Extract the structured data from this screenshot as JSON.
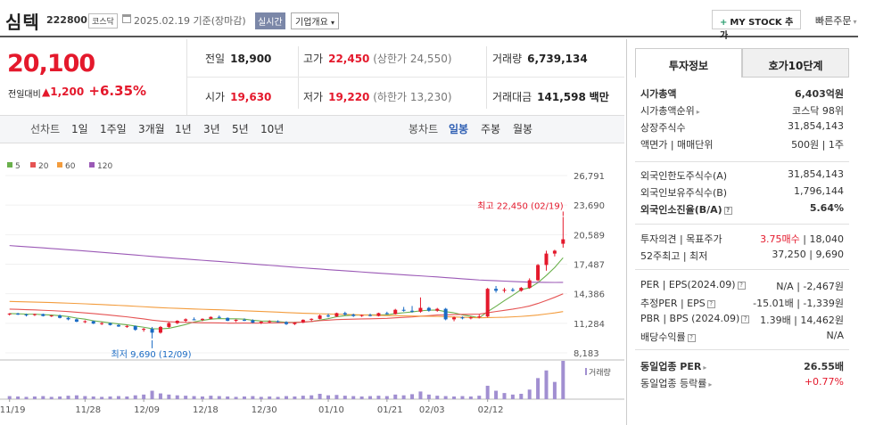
{
  "header": {
    "name": "심텍",
    "code": "222800",
    "market": "코스닥",
    "date": "2025.02.19",
    "basis": "기준(장마감)",
    "realtime": "실시간",
    "company_info": "기업개요",
    "mystock": "MY STOCK 추가",
    "quick_order": "빠른주문"
  },
  "quote": {
    "price": "20,100",
    "change_label": "전일대비",
    "change": "▲1,200",
    "change_pct": "+6.35%"
  },
  "stats": {
    "prev_label": "전일",
    "prev": "18,900",
    "high_label": "고가",
    "high": "22,450",
    "upper_limit": "(상한가 24,550)",
    "volume_label": "거래량",
    "volume": "6,739,134",
    "open_label": "시가",
    "open": "19,630",
    "low_label": "저가",
    "low": "19,220",
    "lower_limit": "(하한가 13,230)",
    "value_label": "거래대금",
    "value": "141,598",
    "value_unit": "백만"
  },
  "periods": {
    "chart_label": "선차트",
    "items": [
      "1일",
      "1주일",
      "3개월",
      "1년",
      "3년",
      "5년",
      "10년"
    ],
    "candle_label": "봉차트",
    "candle_items": [
      "일봉",
      "주봉",
      "월봉"
    ],
    "active": "일봉"
  },
  "chart_data": {
    "type": "line",
    "legend": [
      "5",
      "20",
      "60",
      "120"
    ],
    "ma_colors": [
      "#6ab04c",
      "#e55353",
      "#f39c3d",
      "#9b59b6"
    ],
    "candle_up": "#e4192c",
    "candle_down": "#1a6bc4",
    "volume_color": "#a18fd1",
    "y_ticks": [
      "26,791",
      "23,690",
      "20,589",
      "17,487",
      "14,386",
      "11,284",
      "8,183"
    ],
    "y_range": [
      8183,
      26791
    ],
    "x_ticks": [
      "11/19",
      "11/28",
      "12/09",
      "12/18",
      "12/30",
      "01/10",
      "01/21",
      "02/03",
      "02/12"
    ],
    "high_annotation": "최고 22,450 (02/19)",
    "low_annotation": "최저 9,690 (12/09)",
    "volume_label": "거래량",
    "candles": [
      [
        12250,
        12350,
        12100,
        12300
      ],
      [
        12300,
        12380,
        12150,
        12200
      ],
      [
        12200,
        12300,
        12000,
        12150
      ],
      [
        12150,
        12300,
        12050,
        12250
      ],
      [
        12250,
        12300,
        12000,
        12050
      ],
      [
        12050,
        12150,
        11950,
        12100
      ],
      [
        12100,
        12200,
        11800,
        11850
      ],
      [
        11850,
        11950,
        11600,
        11700
      ],
      [
        11700,
        11800,
        11400,
        11450
      ],
      [
        11450,
        11600,
        11300,
        11500
      ],
      [
        11500,
        11550,
        11200,
        11250
      ],
      [
        11250,
        11400,
        11100,
        11300
      ],
      [
        11300,
        11350,
        11050,
        11100
      ],
      [
        11100,
        11200,
        10900,
        10950
      ],
      [
        10950,
        11100,
        10800,
        11000
      ],
      [
        11000,
        11050,
        10500,
        10600
      ],
      [
        10600,
        10800,
        10400,
        10700
      ],
      [
        10700,
        10900,
        9690,
        10300
      ],
      [
        10300,
        11000,
        10200,
        10900
      ],
      [
        10900,
        11400,
        10800,
        11300
      ],
      [
        11300,
        11600,
        11200,
        11550
      ],
      [
        11550,
        11800,
        11400,
        11700
      ],
      [
        11700,
        11900,
        11600,
        11650
      ],
      [
        11650,
        11800,
        11500,
        11750
      ],
      [
        11750,
        12000,
        11700,
        11950
      ],
      [
        11950,
        12100,
        11800,
        11850
      ],
      [
        11850,
        11900,
        11500,
        11550
      ],
      [
        11550,
        11700,
        11400,
        11650
      ],
      [
        11650,
        11800,
        11500,
        11600
      ],
      [
        11600,
        11700,
        11300,
        11350
      ],
      [
        11350,
        11500,
        11200,
        11450
      ],
      [
        11450,
        11600,
        11300,
        11500
      ],
      [
        11500,
        11600,
        11350,
        11400
      ],
      [
        11400,
        11500,
        11100,
        11200
      ],
      [
        11200,
        11400,
        11100,
        11350
      ],
      [
        11350,
        11700,
        11300,
        11650
      ],
      [
        11650,
        11800,
        11500,
        11750
      ],
      [
        11750,
        12200,
        11700,
        12100
      ],
      [
        12100,
        12300,
        11900,
        12000
      ],
      [
        12000,
        12400,
        11950,
        12350
      ],
      [
        12350,
        12500,
        12100,
        12200
      ],
      [
        12200,
        12300,
        11950,
        12050
      ],
      [
        12050,
        12200,
        11950,
        12150
      ],
      [
        12150,
        12300,
        12000,
        12050
      ],
      [
        12050,
        12400,
        12000,
        12350
      ],
      [
        12350,
        12500,
        12200,
        12250
      ],
      [
        12250,
        12800,
        12200,
        12700
      ],
      [
        12700,
        13000,
        12500,
        12600
      ],
      [
        12600,
        13100,
        12400,
        12500
      ],
      [
        12500,
        14000,
        12400,
        12900
      ],
      [
        12900,
        13000,
        12500,
        12600
      ],
      [
        12600,
        12900,
        12500,
        12800
      ],
      [
        12800,
        12900,
        11600,
        11700
      ],
      [
        11700,
        12000,
        11500,
        11900
      ],
      [
        11900,
        12000,
        11700,
        11800
      ],
      [
        11800,
        12000,
        11700,
        11900
      ],
      [
        11900,
        12200,
        11800,
        12000
      ],
      [
        12000,
        15000,
        11900,
        14900
      ],
      [
        14900,
        15200,
        14500,
        14700
      ],
      [
        14700,
        15000,
        14500,
        14800
      ],
      [
        14800,
        15000,
        14600,
        14700
      ],
      [
        14700,
        15100,
        14600,
        15000
      ],
      [
        15000,
        16000,
        14900,
        15800
      ],
      [
        15800,
        17500,
        15700,
        17400
      ],
      [
        17400,
        18900,
        16800,
        18600
      ],
      [
        18600,
        19000,
        18300,
        18900
      ],
      [
        19630,
        22450,
        19220,
        20100
      ]
    ],
    "volumes": [
      0.08,
      0.07,
      0.06,
      0.07,
      0.08,
      0.06,
      0.07,
      0.09,
      0.1,
      0.08,
      0.07,
      0.06,
      0.07,
      0.08,
      0.07,
      0.1,
      0.12,
      0.22,
      0.15,
      0.12,
      0.1,
      0.09,
      0.08,
      0.07,
      0.09,
      0.08,
      0.07,
      0.06,
      0.07,
      0.08,
      0.06,
      0.07,
      0.06,
      0.08,
      0.07,
      0.09,
      0.1,
      0.14,
      0.1,
      0.11,
      0.09,
      0.08,
      0.07,
      0.08,
      0.09,
      0.08,
      0.12,
      0.1,
      0.13,
      0.2,
      0.12,
      0.09,
      0.08,
      0.07,
      0.08,
      0.07,
      0.09,
      0.35,
      0.22,
      0.16,
      0.12,
      0.14,
      0.25,
      0.55,
      0.75,
      0.45,
      1.0
    ]
  },
  "right": {
    "tab_active": "투자정보",
    "tab_other": "호가10단계",
    "rows1": [
      [
        "시가총액",
        "6,403억원"
      ],
      [
        "시가총액순위",
        "코스닥 98위"
      ],
      [
        "상장주식수",
        "31,854,143"
      ],
      [
        "액면가 | 매매단위",
        "500원 | 1주"
      ]
    ],
    "rows2": [
      [
        "외국인한도주식수(A)",
        "31,854,143"
      ],
      [
        "외국인보유주식수(B)",
        "1,796,144"
      ],
      [
        "외국인소진율(B/A)",
        "5.64%"
      ]
    ],
    "rows3": [
      [
        "투자의견 | 목표주가",
        "3.75매수 | 18,040"
      ],
      [
        "52주최고 | 최저",
        "37,250 | 9,690"
      ]
    ],
    "rows4": [
      [
        "PER | EPS(2024.09)",
        "N/A | -2,467원"
      ],
      [
        "추정PER | EPS",
        "-15.01배 | -1,339원"
      ],
      [
        "PBR | BPS (2024.09)",
        "1.39배 | 14,462원"
      ],
      [
        "배당수익률",
        "N/A"
      ]
    ],
    "rows5": [
      [
        "동일업종 PER",
        "26.55배"
      ],
      [
        "동일업종 등락률",
        "+0.77%"
      ]
    ]
  }
}
